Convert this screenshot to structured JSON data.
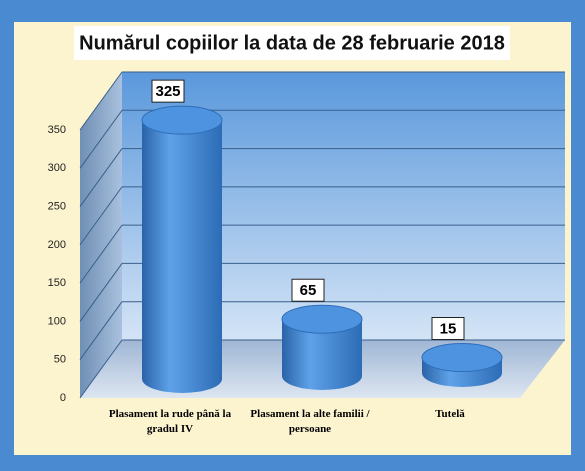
{
  "chart_data": {
    "type": "bar",
    "title": "Numărul copiilor la data de 28 februarie 2018",
    "categories": [
      "Plasament la rude până la gradul IV",
      "Plasament la alte familii / persoane",
      "Tutelă"
    ],
    "values": [
      325,
      65,
      15
    ],
    "color": "#3f86d2",
    "ylim": [
      0,
      350
    ],
    "yticks": [
      0,
      50,
      100,
      150,
      200,
      250,
      300,
      350
    ],
    "grid": true
  }
}
